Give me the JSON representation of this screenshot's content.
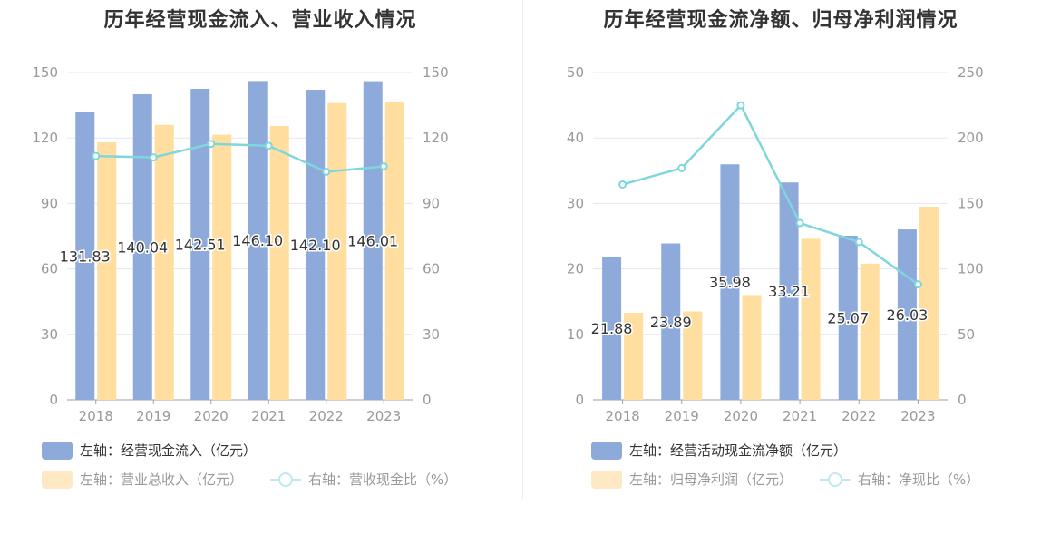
{
  "charts": [
    {
      "title": "历年经营现金流入、营业收入情况",
      "legend": [
        {
          "label": "左轴：经营现金流入（亿元）",
          "color": "#8eaadb",
          "type": "bar"
        },
        {
          "label": "左轴：营业总收入（亿元）",
          "color": "#ffdea0",
          "type": "bar"
        },
        {
          "label": "右轴：营收现金比（%）",
          "color": "#7fd6dc",
          "type": "line"
        }
      ]
    },
    {
      "title": "历年经营现金流净额、归母净利润情况",
      "legend": [
        {
          "label": "左轴：经营活动现金流净额（亿元）",
          "color": "#8eaadb",
          "type": "bar"
        },
        {
          "label": "左轴：归母净利润（亿元）",
          "color": "#ffdea0",
          "type": "bar"
        },
        {
          "label": "右轴：净现比（%）",
          "color": "#7fd6dc",
          "type": "line"
        }
      ]
    }
  ],
  "chart_data": [
    {
      "type": "bar",
      "title": "历年经营现金流入、营业收入情况",
      "categories": [
        "2018",
        "2019",
        "2020",
        "2021",
        "2022",
        "2023"
      ],
      "y_left": {
        "min": 0,
        "max": 150,
        "ticks": [
          "0",
          "30",
          "60",
          "90",
          "120",
          "150"
        ]
      },
      "y_right": {
        "min": 0,
        "max": 150,
        "ticks": [
          "0",
          "30",
          "60",
          "90",
          "120",
          "150"
        ]
      },
      "series": [
        {
          "name": "左轴：经营现金流入（亿元）",
          "axis": "left",
          "type": "bar",
          "color": "#8eaadb",
          "values": [
            131.83,
            140.04,
            142.51,
            146.1,
            142.1,
            146.01
          ],
          "labels": [
            "131.83",
            "140.04",
            "142.51",
            "146.10",
            "142.10",
            "146.01"
          ]
        },
        {
          "name": "左轴：营业总收入（亿元）",
          "axis": "left",
          "type": "bar",
          "color": "#ffdea0",
          "values": [
            118,
            126,
            121.5,
            125.5,
            136,
            136.5
          ]
        },
        {
          "name": "右轴：营收现金比（%）",
          "axis": "right",
          "type": "line",
          "color": "#7fd6dc",
          "values": [
            111.7,
            111.1,
            117.3,
            116.4,
            104.5,
            107.0
          ]
        }
      ],
      "grid": true,
      "legend_position": "bottom-left"
    },
    {
      "type": "bar",
      "title": "历年经营现金流净额、归母净利润情况",
      "categories": [
        "2018",
        "2019",
        "2020",
        "2021",
        "2022",
        "2023"
      ],
      "y_left": {
        "min": 0,
        "max": 50,
        "ticks": [
          "0",
          "10",
          "20",
          "30",
          "40",
          "50"
        ]
      },
      "y_right": {
        "min": 0,
        "max": 250,
        "ticks": [
          "0",
          "50",
          "100",
          "150",
          "200",
          "250"
        ]
      },
      "series": [
        {
          "name": "左轴：经营活动现金流净额（亿元）",
          "axis": "left",
          "type": "bar",
          "color": "#8eaadb",
          "values": [
            21.88,
            23.89,
            35.98,
            33.21,
            25.07,
            26.03
          ],
          "labels": [
            "21.88",
            "23.89",
            "35.98",
            "33.21",
            "25.07",
            "26.03"
          ]
        },
        {
          "name": "左轴：归母净利润（亿元）",
          "axis": "left",
          "type": "bar",
          "color": "#ffdea0",
          "values": [
            13.3,
            13.5,
            16.0,
            24.6,
            20.8,
            29.5
          ]
        },
        {
          "name": "右轴：净现比（%）",
          "axis": "right",
          "type": "line",
          "color": "#7fd6dc",
          "values": [
            164.5,
            177.0,
            225.0,
            135.0,
            120.5,
            88.2
          ]
        }
      ],
      "grid": true,
      "legend_position": "bottom-left"
    }
  ]
}
